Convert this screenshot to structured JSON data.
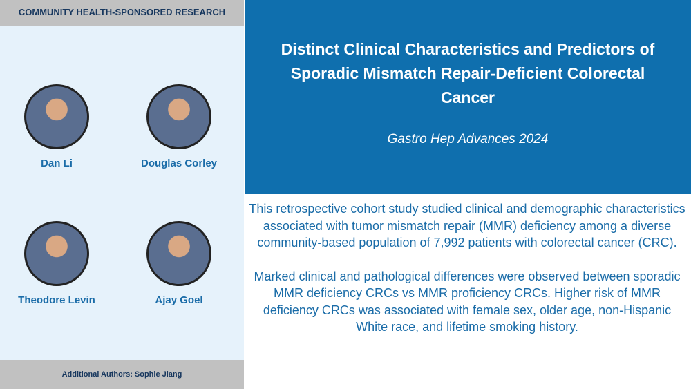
{
  "header": {
    "label": "COMMUNITY HEALTH-SPONSORED RESEARCH"
  },
  "authors": [
    {
      "name": "Dan Li"
    },
    {
      "name": "Douglas Corley"
    },
    {
      "name": "Theodore Levin"
    },
    {
      "name": "Ajay Goel"
    }
  ],
  "additional_authors": "Additional Authors: Sophie Jiang",
  "title": "Distinct Clinical Characteristics and Predictors of Sporadic Mismatch Repair-Deficient Colorectal Cancer",
  "journal": "Gastro Hep Advances 2024",
  "summary": [
    "This retrospective cohort study studied clinical and demographic characteristics associated with tumor mismatch repair (MMR) deficiency among a diverse community-based population of 7,992 patients with colorectal cancer (CRC).",
    "Marked clinical and pathological differences were observed between sporadic MMR deficiency CRCs vs MMR proficiency CRCs. Higher risk of MMR deficiency CRCs was associated with female sex, older age, non-Hispanic White race, and lifetime smoking history."
  ]
}
